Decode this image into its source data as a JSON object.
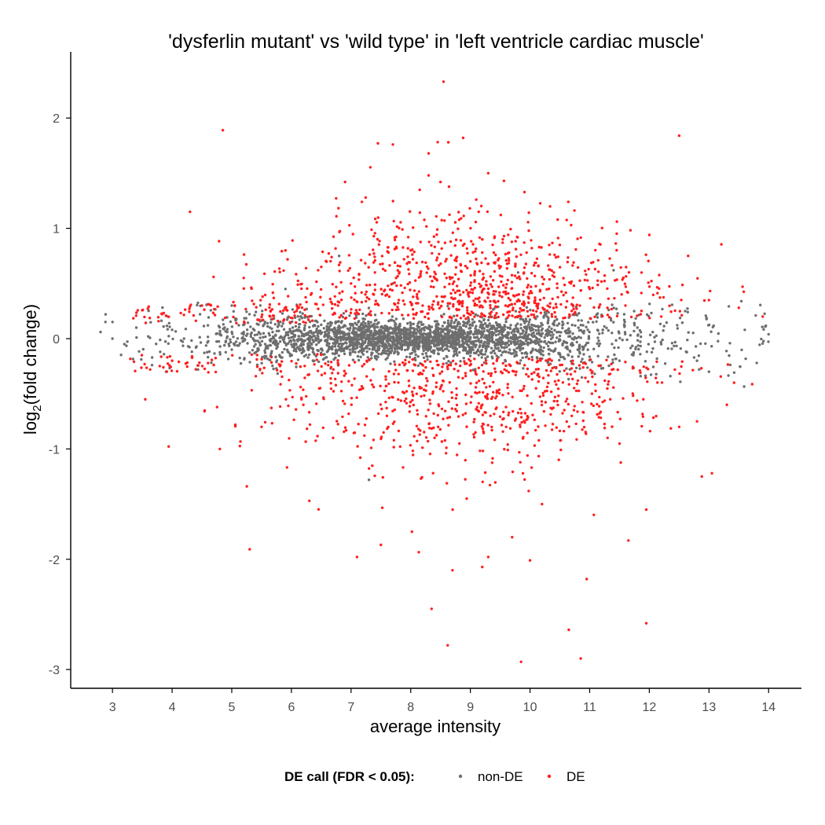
{
  "chart_data": {
    "type": "scatter",
    "title": "'dysferlin mutant' vs 'wild type' in 'left ventricle cardiac muscle'",
    "xlabel": "average intensity",
    "ylabel_main": "log",
    "ylabel_sub": "2",
    "ylabel_rest": "(fold change)",
    "xlim": [
      2.3,
      14.55
    ],
    "ylim": [
      -3.17,
      2.6
    ],
    "x_ticks": [
      3,
      4,
      5,
      6,
      7,
      8,
      9,
      10,
      11,
      12,
      13,
      14
    ],
    "x_tick_labels": [
      "3",
      "4",
      "5",
      "6",
      "7",
      "8",
      "9",
      "10",
      "11",
      "12",
      "13",
      "14"
    ],
    "y_ticks": [
      2,
      1,
      0,
      -1,
      -2,
      -3
    ],
    "y_tick_labels": [
      "2",
      "1",
      "0",
      "-1",
      "-2",
      "-3"
    ],
    "grid": false,
    "legend": {
      "title": "DE call (FDR < 0.05):",
      "position": "bottom",
      "entries": [
        {
          "label": "non-DE",
          "color": "#6e6e6e"
        },
        {
          "label": "DE",
          "color": "#ff1f1f"
        }
      ]
    },
    "colors": {
      "non_de": "#6e6e6e",
      "de": "#ff1f1f",
      "axis": "#000000"
    },
    "series": [
      {
        "name": "non-DE",
        "color": "#6e6e6e",
        "points": [
          [
            2.8,
            0.06
          ],
          [
            3.0,
            0.0
          ],
          [
            3.2,
            -0.05
          ],
          [
            3.4,
            0.1
          ],
          [
            3.6,
            0.02
          ],
          [
            3.8,
            -0.12
          ],
          [
            4.0,
            0.08
          ],
          [
            4.2,
            0.0
          ],
          [
            4.4,
            -0.08
          ],
          [
            4.6,
            0.12
          ],
          [
            4.8,
            0.04
          ],
          [
            5.0,
            -0.1
          ],
          [
            5.2,
            0.06
          ],
          [
            5.4,
            -0.02
          ],
          [
            5.6,
            0.14
          ],
          [
            5.8,
            -0.15
          ],
          [
            6.0,
            0.05
          ],
          [
            6.2,
            -0.05
          ],
          [
            6.4,
            0.16
          ],
          [
            6.6,
            -0.12
          ],
          [
            6.8,
            0.08
          ],
          [
            7.0,
            -0.03
          ],
          [
            7.2,
            0.18
          ],
          [
            7.4,
            -0.16
          ],
          [
            7.6,
            0.02
          ],
          [
            7.8,
            -0.08
          ],
          [
            8.0,
            0.12
          ],
          [
            8.2,
            -0.14
          ],
          [
            8.4,
            0.05
          ],
          [
            8.6,
            -0.06
          ],
          [
            8.8,
            0.15
          ],
          [
            9.0,
            -0.1
          ],
          [
            9.2,
            0.03
          ],
          [
            9.4,
            0.1
          ],
          [
            9.6,
            -0.12
          ],
          [
            9.8,
            0.06
          ],
          [
            10.0,
            -0.04
          ],
          [
            10.3,
            0.14
          ],
          [
            10.6,
            -0.08
          ],
          [
            10.9,
            0.05
          ],
          [
            11.2,
            0.2
          ],
          [
            11.5,
            -0.2
          ],
          [
            11.8,
            0.1
          ],
          [
            12.2,
            -0.05
          ],
          [
            12.6,
            0.25
          ],
          [
            13.0,
            -0.3
          ],
          [
            13.6,
            0.08
          ],
          [
            14.0,
            0.04
          ],
          [
            5.0,
            0.3
          ],
          [
            5.9,
            0.45
          ],
          [
            6.8,
            0.75
          ],
          [
            7.3,
            -1.28
          ],
          [
            7.7,
            0.5
          ],
          [
            9.8,
            0.6
          ],
          [
            10.8,
            -0.1
          ],
          [
            11.4,
            0.62
          ],
          [
            12.8,
            -0.2
          ],
          [
            13.8,
            -0.22
          ]
        ]
      },
      {
        "name": "DE",
        "color": "#ff1f1f",
        "points": [
          [
            3.55,
            -0.55
          ],
          [
            4.3,
            1.15
          ],
          [
            4.85,
            1.89
          ],
          [
            4.8,
            -1.0
          ],
          [
            5.3,
            -1.91
          ],
          [
            6.3,
            -1.47
          ],
          [
            7.1,
            -1.98
          ],
          [
            6.9,
            1.42
          ],
          [
            7.45,
            1.77
          ],
          [
            7.7,
            1.76
          ],
          [
            8.3,
            1.68
          ],
          [
            8.55,
            2.33
          ],
          [
            8.63,
            1.78
          ],
          [
            8.88,
            1.82
          ],
          [
            8.5,
            1.42
          ],
          [
            8.3,
            1.48
          ],
          [
            9.3,
            1.5
          ],
          [
            9.1,
            1.26
          ],
          [
            12.5,
            1.84
          ],
          [
            12.0,
            0.94
          ],
          [
            12.65,
            0.75
          ],
          [
            8.02,
            -1.75
          ],
          [
            8.35,
            -2.45
          ],
          [
            8.62,
            -2.78
          ],
          [
            8.7,
            -2.1
          ],
          [
            9.2,
            -2.07
          ],
          [
            9.85,
            -2.93
          ],
          [
            10.0,
            -2.01
          ],
          [
            10.65,
            -2.64
          ],
          [
            10.85,
            -2.9
          ],
          [
            10.95,
            -2.18
          ],
          [
            11.95,
            -2.58
          ],
          [
            11.65,
            -1.83
          ],
          [
            11.95,
            -1.55
          ],
          [
            12.88,
            -1.25
          ],
          [
            13.05,
            -1.22
          ],
          [
            9.3,
            -1.98
          ],
          [
            10.2,
            -1.5
          ],
          [
            9.7,
            -1.8
          ],
          [
            7.5,
            -1.87
          ],
          [
            9.2,
            0.9
          ],
          [
            10.5,
            0.85
          ],
          [
            12.8,
            -0.75
          ],
          [
            13.5,
            0.28
          ],
          [
            13.9,
            0.2
          ],
          [
            4.0,
            -0.2
          ],
          [
            4.5,
            0.3
          ],
          [
            5.2,
            0.55
          ],
          [
            5.5,
            -0.8
          ],
          [
            5.9,
            0.8
          ],
          [
            6.2,
            -0.6
          ],
          [
            6.5,
            0.65
          ],
          [
            6.7,
            -0.9
          ],
          [
            7.0,
            0.5
          ],
          [
            7.2,
            -0.45
          ],
          [
            7.4,
            0.6
          ],
          [
            7.6,
            -0.7
          ],
          [
            7.8,
            0.35
          ],
          [
            8.0,
            0.8
          ],
          [
            8.1,
            -0.5
          ],
          [
            8.2,
            0.3
          ],
          [
            8.4,
            -0.9
          ],
          [
            8.6,
            0.55
          ],
          [
            8.8,
            -0.35
          ],
          [
            9.0,
            0.7
          ],
          [
            9.2,
            -0.6
          ],
          [
            9.4,
            0.4
          ],
          [
            9.6,
            -0.8
          ],
          [
            9.9,
            0.3
          ],
          [
            10.1,
            -0.45
          ],
          [
            10.4,
            0.6
          ],
          [
            10.7,
            -0.7
          ],
          [
            11.0,
            0.45
          ],
          [
            11.3,
            -0.9
          ],
          [
            11.6,
            0.3
          ],
          [
            11.9,
            -0.55
          ],
          [
            12.2,
            0.2
          ],
          [
            12.5,
            -0.8
          ],
          [
            13.0,
            0.35
          ],
          [
            13.3,
            -0.6
          ]
        ]
      }
    ],
    "density": [
      {
        "center": 8.0,
        "spread": 1.7,
        "band": 0.34
      },
      {
        "center": 9.0,
        "spread": 2.1,
        "band": 0.45
      }
    ]
  }
}
